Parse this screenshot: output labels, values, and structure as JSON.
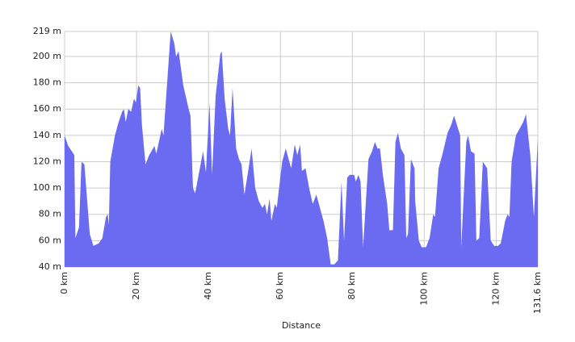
{
  "chart_data": {
    "type": "area",
    "x_label": "Distance",
    "color": "#6b6bf2",
    "grid": true,
    "xlim": [
      0,
      131.6
    ],
    "ylim": [
      40,
      219
    ],
    "xticks": [
      {
        "value": 0,
        "label": "0 km"
      },
      {
        "value": 20,
        "label": "20 km"
      },
      {
        "value": 40,
        "label": "40 km"
      },
      {
        "value": 60,
        "label": "60 km"
      },
      {
        "value": 80,
        "label": "80 km"
      },
      {
        "value": 100,
        "label": "100 km"
      },
      {
        "value": 120,
        "label": "120 km"
      },
      {
        "value": 131.6,
        "label": "131.6 km"
      }
    ],
    "yticks": [
      {
        "value": 40,
        "label": "40 m"
      },
      {
        "value": 60,
        "label": "60 m"
      },
      {
        "value": 80,
        "label": "80 m"
      },
      {
        "value": 100,
        "label": "100 m"
      },
      {
        "value": 120,
        "label": "120 m"
      },
      {
        "value": 140,
        "label": "140 m"
      },
      {
        "value": 160,
        "label": "160 m"
      },
      {
        "value": 180,
        "label": "180 m"
      },
      {
        "value": 200,
        "label": "200 m"
      },
      {
        "value": 219,
        "label": "219 m"
      }
    ],
    "x": [
      0,
      1,
      2,
      2.7,
      3,
      4,
      4.7,
      5.5,
      7,
      8,
      9.5,
      10.5,
      11.5,
      12,
      12.3,
      12.7,
      14,
      15,
      16,
      16.5,
      17,
      17.7,
      18.5,
      19.3,
      19.8,
      20.5,
      21,
      21.5,
      22.5,
      23.5,
      25,
      25.5,
      27,
      27.5,
      29.5,
      30.5,
      31,
      31.7,
      33,
      34.5,
      35,
      35.7,
      36.3,
      38.5,
      39.3,
      40.3,
      41,
      42,
      43.3,
      43.7,
      44.5,
      45.5,
      46,
      46.7,
      47.7,
      48.5,
      49.2,
      50,
      51,
      52,
      53,
      54,
      55,
      55.7,
      56.3,
      57,
      57.5,
      58.5,
      59,
      60.5,
      61.5,
      62,
      63,
      64,
      64.7,
      65.5,
      66,
      67,
      68,
      69,
      70,
      71,
      72,
      73,
      74,
      75,
      76,
      77,
      77.7,
      78.6,
      79.3,
      80.5,
      81,
      81.7,
      82.3,
      83,
      84.5,
      85.5,
      86.3,
      87,
      87.7,
      88.5,
      89.7,
      90.3,
      91.3,
      92,
      92.7,
      93.5,
      94.5,
      95,
      95.5,
      96.3,
      97.3,
      97.5,
      98.5,
      99.3,
      100.5,
      101.5,
      102.5,
      103,
      104,
      105,
      106.5,
      107.5,
      108.3,
      110,
      110.3,
      111.7,
      112.2,
      113,
      114,
      114.5,
      115.3,
      116.3,
      117.5,
      118.5,
      119.5,
      120.5,
      121.3,
      122.5,
      123.2,
      123.7,
      124.3,
      125.5,
      126.5,
      127.5,
      128.3,
      129.5,
      130.5,
      131.6
    ],
    "values": [
      140,
      132,
      128,
      125,
      62,
      70,
      120,
      118,
      65,
      56,
      58,
      62,
      78,
      80,
      72,
      120,
      140,
      150,
      158,
      160,
      150,
      160,
      158,
      168,
      165,
      178,
      176,
      148,
      118,
      125,
      132,
      126,
      145,
      140,
      219,
      210,
      200,
      204,
      178,
      160,
      155,
      100,
      96,
      128,
      112,
      165,
      110,
      170,
      202,
      204,
      168,
      145,
      140,
      176,
      130,
      122,
      118,
      95,
      112,
      130,
      100,
      90,
      85,
      88,
      80,
      92,
      75,
      88,
      85,
      120,
      130,
      125,
      115,
      133,
      125,
      133,
      113,
      115,
      100,
      88,
      95,
      85,
      75,
      62,
      42,
      42,
      45,
      105,
      60,
      108,
      110,
      110,
      105,
      110,
      105,
      55,
      122,
      128,
      135,
      130,
      130,
      110,
      88,
      68,
      68,
      135,
      142,
      130,
      125,
      62,
      65,
      122,
      115,
      90,
      60,
      55,
      55,
      62,
      80,
      78,
      115,
      125,
      142,
      148,
      155,
      140,
      55,
      135,
      140,
      128,
      126,
      60,
      62,
      120,
      115,
      60,
      56,
      56,
      58,
      75,
      80,
      78,
      120,
      140,
      145,
      150,
      156,
      125,
      78,
      138
    ]
  }
}
